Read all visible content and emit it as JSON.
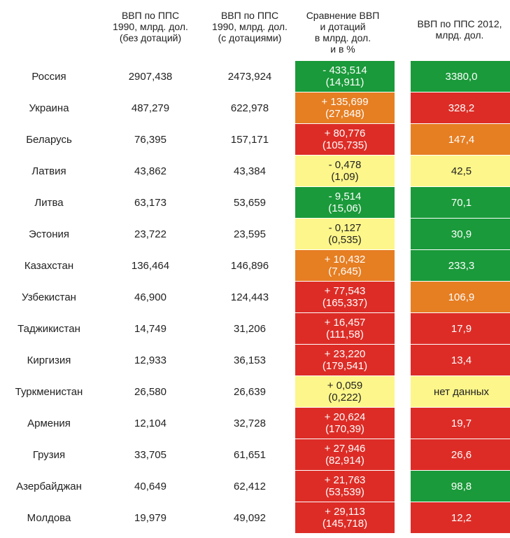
{
  "headers": {
    "col1": [
      "ВВП по ППС",
      "1990, млрд. дол.",
      "(без дотаций)"
    ],
    "col2": [
      "ВВП по ППС",
      "1990, млрд. дол.",
      "(с дотациями)"
    ],
    "col3": [
      "Сравнение ВВП",
      "и дотаций",
      "в млрд. дол.",
      "и в %"
    ],
    "col4": [
      "ВВП по ППС 2012,",
      "млрд. дол."
    ]
  },
  "colors": {
    "green": "#1a9a3a",
    "orange": "#e67e22",
    "red": "#dd2c26",
    "yellow": "#fdf68a"
  },
  "rows": [
    {
      "country": "Россия",
      "v1": "2907,438",
      "v2": "2473,924",
      "cmp1": "- 433,514",
      "cmp2": "(14,911)",
      "cmp_color": "green",
      "gdp2012": "3380,0",
      "gdp_color": "green"
    },
    {
      "country": "Украина",
      "v1": "487,279",
      "v2": "622,978",
      "cmp1": "+ 135,699",
      "cmp2": "(27,848)",
      "cmp_color": "orange",
      "gdp2012": "328,2",
      "gdp_color": "red"
    },
    {
      "country": "Беларусь",
      "v1": "76,395",
      "v2": "157,171",
      "cmp1": "+ 80,776",
      "cmp2": "(105,735)",
      "cmp_color": "red",
      "gdp2012": "147,4",
      "gdp_color": "orange"
    },
    {
      "country": "Латвия",
      "v1": "43,862",
      "v2": "43,384",
      "cmp1": "- 0,478",
      "cmp2": "(1,09)",
      "cmp_color": "yellow",
      "gdp2012": "42,5",
      "gdp_color": "yellow"
    },
    {
      "country": "Литва",
      "v1": "63,173",
      "v2": "53,659",
      "cmp1": "- 9,514",
      "cmp2": "(15,06)",
      "cmp_color": "green",
      "gdp2012": "70,1",
      "gdp_color": "green"
    },
    {
      "country": "Эстония",
      "v1": "23,722",
      "v2": "23,595",
      "cmp1": "- 0,127",
      "cmp2": "(0,535)",
      "cmp_color": "yellow",
      "gdp2012": "30,9",
      "gdp_color": "green"
    },
    {
      "country": "Казахстан",
      "v1": "136,464",
      "v2": "146,896",
      "cmp1": "+ 10,432",
      "cmp2": "(7,645)",
      "cmp_color": "orange",
      "gdp2012": "233,3",
      "gdp_color": "green"
    },
    {
      "country": "Узбекистан",
      "v1": "46,900",
      "v2": "124,443",
      "cmp1": "+ 77,543",
      "cmp2": "(165,337)",
      "cmp_color": "red",
      "gdp2012": "106,9",
      "gdp_color": "orange"
    },
    {
      "country": "Таджикистан",
      "v1": "14,749",
      "v2": "31,206",
      "cmp1": "+ 16,457",
      "cmp2": "(111,58)",
      "cmp_color": "red",
      "gdp2012": "17,9",
      "gdp_color": "red"
    },
    {
      "country": "Киргизия",
      "v1": "12,933",
      "v2": "36,153",
      "cmp1": "+ 23,220",
      "cmp2": "(179,541)",
      "cmp_color": "red",
      "gdp2012": "13,4",
      "gdp_color": "red"
    },
    {
      "country": "Туркменистан",
      "v1": "26,580",
      "v2": "26,639",
      "cmp1": "+ 0,059",
      "cmp2": "(0,222)",
      "cmp_color": "yellow",
      "gdp2012": "нет данных",
      "gdp_color": "yellow"
    },
    {
      "country": "Армения",
      "v1": "12,104",
      "v2": "32,728",
      "cmp1": "+ 20,624",
      "cmp2": "(170,39)",
      "cmp_color": "red",
      "gdp2012": "19,7",
      "gdp_color": "red"
    },
    {
      "country": "Грузия",
      "v1": "33,705",
      "v2": "61,651",
      "cmp1": "+ 27,946",
      "cmp2": "(82,914)",
      "cmp_color": "red",
      "gdp2012": "26,6",
      "gdp_color": "red"
    },
    {
      "country": "Азербайджан",
      "v1": "40,649",
      "v2": "62,412",
      "cmp1": "+ 21,763",
      "cmp2": "(53,539)",
      "cmp_color": "red",
      "gdp2012": "98,8",
      "gdp_color": "green"
    },
    {
      "country": "Молдова",
      "v1": "19,979",
      "v2": "49,092",
      "cmp1": "+ 29,113",
      "cmp2": "(145,718)",
      "cmp_color": "red",
      "gdp2012": "12,2",
      "gdp_color": "red"
    }
  ]
}
